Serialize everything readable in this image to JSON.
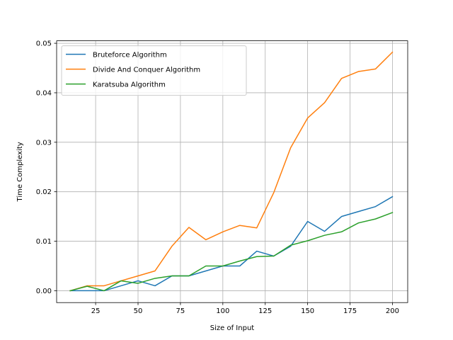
{
  "chart_data": {
    "type": "line",
    "xlabel": "Size of Input",
    "ylabel": "Time Complexity",
    "xlim": [
      2,
      209
    ],
    "ylim": [
      -0.0024,
      0.0505
    ],
    "xticks": [
      25,
      50,
      75,
      100,
      125,
      150,
      175,
      200
    ],
    "xtick_labels": [
      "25",
      "50",
      "75",
      "100",
      "125",
      "150",
      "175",
      "200"
    ],
    "yticks": [
      0.0,
      0.01,
      0.02,
      0.03,
      0.04,
      0.05
    ],
    "ytick_labels": [
      "0.00",
      "0.01",
      "0.02",
      "0.03",
      "0.04",
      "0.05"
    ],
    "grid": true,
    "legend_position": "upper left",
    "x": [
      10,
      20,
      30,
      40,
      50,
      60,
      70,
      80,
      90,
      100,
      110,
      120,
      130,
      140,
      150,
      160,
      170,
      180,
      190,
      200
    ],
    "series": [
      {
        "name": "Bruteforce Algorithm",
        "color": "#1f77b4",
        "values": [
          0.0,
          0.0,
          0.0,
          0.001,
          0.002,
          0.001,
          0.003,
          0.003,
          0.004,
          0.005,
          0.005,
          0.008,
          0.007,
          0.009,
          0.014,
          0.012,
          0.015,
          0.016,
          0.017,
          0.019
        ]
      },
      {
        "name": "Divide And Conquer Algorithm",
        "color": "#ff7f0e",
        "values": [
          0.0,
          0.001,
          0.001,
          0.002,
          0.003,
          0.004,
          0.009,
          0.0128,
          0.0103,
          0.0119,
          0.0132,
          0.0127,
          0.0198,
          0.0289,
          0.0349,
          0.038,
          0.0429,
          0.0443,
          0.0448,
          0.0482
        ]
      },
      {
        "name": "Karatsuba Algorithm",
        "color": "#2ca02c",
        "values": [
          0.0,
          0.0009,
          0.0,
          0.002,
          0.0015,
          0.0025,
          0.003,
          0.003,
          0.005,
          0.005,
          0.006,
          0.0069,
          0.007,
          0.0092,
          0.0101,
          0.0112,
          0.0119,
          0.0137,
          0.0145,
          0.0158
        ]
      }
    ]
  }
}
